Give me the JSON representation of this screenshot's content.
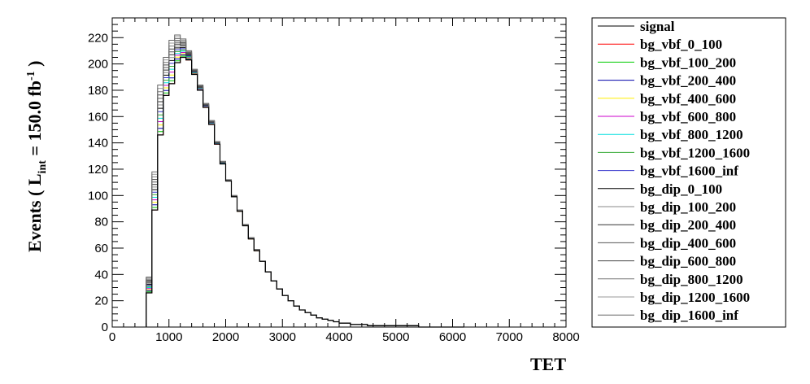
{
  "chart_data": {
    "type": "histogram",
    "xlabel": "TET",
    "ylabel_main": "Events  ( L",
    "ylabel_sub": "int",
    "ylabel_eq": " = 150.0 fb",
    "ylabel_sup": "-1",
    "ylabel_close": " )",
    "xlim": [
      0,
      8000
    ],
    "ylim": [
      0,
      235
    ],
    "xticks": [
      "0",
      "1000",
      "2000",
      "3000",
      "4000",
      "5000",
      "6000",
      "7000",
      "8000"
    ],
    "yticks": [
      "0",
      "20",
      "40",
      "60",
      "80",
      "100",
      "120",
      "140",
      "160",
      "180",
      "200",
      "220"
    ],
    "bin_width": 100,
    "bin_edges_start": 600,
    "series": [
      {
        "name": "signal",
        "color": "#000000",
        "values": [
          26,
          89,
          146,
          176,
          185,
          201,
          205,
          203,
          192,
          180,
          167,
          154,
          139,
          124,
          111,
          99,
          88,
          77,
          67,
          58,
          50,
          42,
          35,
          29,
          24,
          20,
          16,
          13,
          11,
          9,
          7,
          6,
          5,
          4,
          3,
          3,
          2,
          2,
          2,
          1,
          1,
          1,
          1,
          1,
          1,
          1,
          1,
          1,
          0,
          0,
          0,
          0,
          0,
          0,
          0,
          0
        ]
      },
      {
        "name": "bg_vbf_0_100",
        "color": "#ff0000",
        "values": []
      },
      {
        "name": "bg_vbf_100_200",
        "color": "#00cc00",
        "values": []
      },
      {
        "name": "bg_vbf_200_400",
        "color": "#0000aa",
        "values": []
      },
      {
        "name": "bg_vbf_400_600",
        "color": "#ffee00",
        "values": []
      },
      {
        "name": "bg_vbf_600_800",
        "color": "#cc00cc",
        "values": []
      },
      {
        "name": "bg_vbf_800_1200",
        "color": "#00dddd",
        "values": []
      },
      {
        "name": "bg_vbf_1200_1600",
        "color": "#33aa33",
        "values": []
      },
      {
        "name": "bg_vbf_1600_inf",
        "color": "#3333cc",
        "values": []
      },
      {
        "name": "bg_dip_0_100",
        "color": "#000000",
        "values": []
      },
      {
        "name": "bg_dip_100_200",
        "color": "#888888",
        "values": []
      },
      {
        "name": "bg_dip_200_400",
        "color": "#333333",
        "values": []
      },
      {
        "name": "bg_dip_400_600",
        "color": "#555555",
        "values": []
      },
      {
        "name": "bg_dip_600_800",
        "color": "#444444",
        "values": []
      },
      {
        "name": "bg_dip_800_1200",
        "color": "#777777",
        "values": []
      },
      {
        "name": "bg_dip_1200_1600",
        "color": "#999999",
        "values": []
      },
      {
        "name": "bg_dip_1600_inf",
        "color": "#666666",
        "values": []
      }
    ],
    "stack_upper": [
      38,
      118,
      184,
      205,
      218,
      222,
      219,
      210,
      196,
      184,
      170,
      157,
      141,
      126,
      112,
      100,
      89,
      78,
      68,
      59,
      50,
      42,
      35,
      29,
      24,
      20,
      16,
      13,
      11,
      9,
      7,
      6,
      5,
      4,
      3,
      3,
      2,
      2,
      2,
      1,
      1,
      1,
      1,
      1,
      1,
      1,
      1,
      1,
      0,
      0,
      0,
      0,
      0,
      0,
      0,
      0
    ]
  }
}
